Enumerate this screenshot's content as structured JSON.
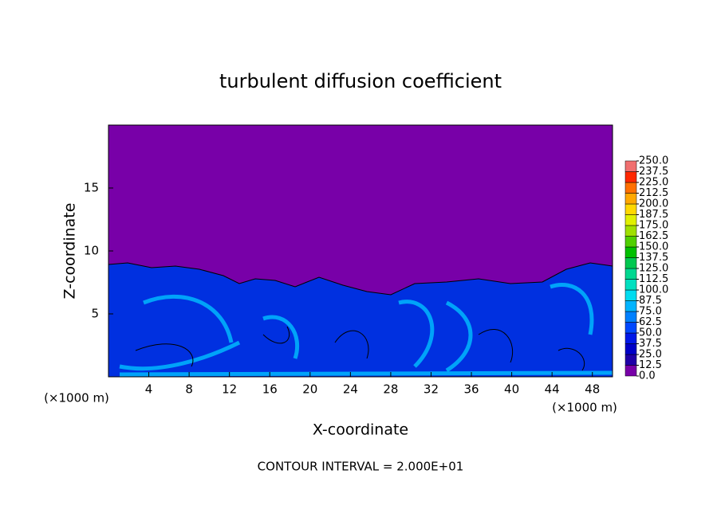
{
  "chart_data": {
    "type": "contour",
    "title": "turbulent diffusion coefficient",
    "x_label": "X-coordinate",
    "y_label": "Z-coordinate",
    "x_unit_label": "(×1000 m)",
    "y_unit_label": "(×1000 m)",
    "note": "CONTOUR INTERVAL = 2.000E+01",
    "xlim": [
      0,
      50
    ],
    "xticks": [
      4,
      8,
      12,
      16,
      20,
      24,
      28,
      32,
      36,
      40,
      44,
      48
    ],
    "ylim": [
      0,
      20
    ],
    "yticks": [
      5,
      10,
      15
    ],
    "colorbar": {
      "ticks": [
        {
          "value": 0,
          "label": "0.0"
        },
        {
          "value": 12.5,
          "label": "12.5"
        },
        {
          "value": 25,
          "label": "25.0"
        },
        {
          "value": 37.5,
          "label": "37.5"
        },
        {
          "value": 50,
          "label": "50.0"
        },
        {
          "value": 62.5,
          "label": "62.5"
        },
        {
          "value": 75,
          "label": "75.0"
        },
        {
          "value": 87.5,
          "label": "87.5"
        },
        {
          "value": 100,
          "label": "100.0"
        },
        {
          "value": 112.5,
          "label": "112.5"
        },
        {
          "value": 125,
          "label": "125.0"
        },
        {
          "value": 137.5,
          "label": "137.5"
        },
        {
          "value": 150,
          "label": "150.0"
        },
        {
          "value": 162.5,
          "label": "162.5"
        },
        {
          "value": 175,
          "label": "175.0"
        },
        {
          "value": 187.5,
          "label": "187.5"
        },
        {
          "value": 200,
          "label": "200.0"
        },
        {
          "value": 212.5,
          "label": "212.5"
        },
        {
          "value": 225,
          "label": "225.0"
        },
        {
          "value": 237.5,
          "label": "237.5"
        },
        {
          "value": 250,
          "label": "250.0"
        }
      ],
      "colors": [
        "#7800a8",
        "#2000a8",
        "#0000c8",
        "#0018e8",
        "#0048ff",
        "#0080ff",
        "#00b4ff",
        "#00dcf0",
        "#00e0c0",
        "#00d890",
        "#00c850",
        "#00c000",
        "#50d000",
        "#a0e000",
        "#e0f000",
        "#ffd800",
        "#ffa800",
        "#ff7000",
        "#ff2800",
        "#f07070"
      ]
    }
  }
}
